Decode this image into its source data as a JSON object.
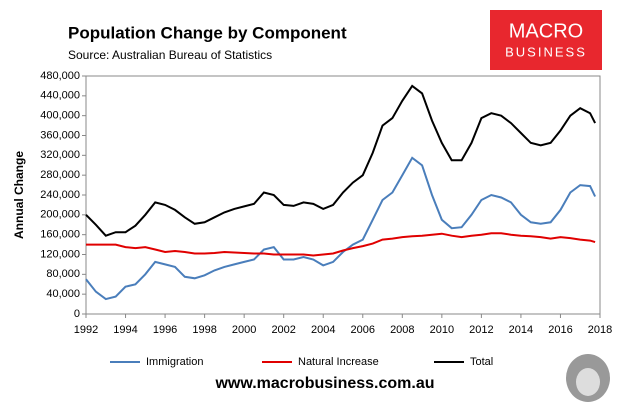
{
  "chart_data": {
    "type": "line",
    "title": "Population Change by Component",
    "subtitle": "Source: Australian Bureau of Statistics",
    "y_label": "Annual Change",
    "logo": [
      "MACRO",
      "BUSINESS"
    ],
    "website": "www.macrobusiness.com.au",
    "legend": "bottom",
    "grid": false,
    "xlim": [
      1992,
      2018
    ],
    "xticks": [
      1992,
      1994,
      1996,
      1998,
      2000,
      2002,
      2004,
      2006,
      2008,
      2010,
      2012,
      2014,
      2016,
      2018
    ],
    "ylim": [
      0,
      480000
    ],
    "yticks": [
      0,
      {
        "value": 40000,
        "label": "40,000"
      },
      {
        "value": 80000,
        "label": "80,000"
      },
      {
        "value": 120000,
        "label": "120,000"
      },
      {
        "value": 160000,
        "label": "160,000"
      },
      {
        "value": 200000,
        "label": "200,000"
      },
      {
        "value": 240000,
        "label": "240,000"
      },
      {
        "value": 280000,
        "label": "280,000"
      },
      {
        "value": 320000,
        "label": "320,000"
      },
      {
        "value": 360000,
        "label": "360,000"
      },
      {
        "value": 400000,
        "label": "400,000"
      },
      {
        "value": 440000,
        "label": "440,000"
      },
      {
        "value": 480000,
        "label": "480,000"
      }
    ],
    "x": [
      1992,
      1992.5,
      1993,
      1993.5,
      1994,
      1994.5,
      1995,
      1995.5,
      1996,
      1996.5,
      1997,
      1997.5,
      1998,
      1998.5,
      1999,
      1999.5,
      2000,
      2000.5,
      2001,
      2001.5,
      2002,
      2002.5,
      2003,
      2003.5,
      2004,
      2004.5,
      2005,
      2005.5,
      2006,
      2006.5,
      2007,
      2007.5,
      2008,
      2008.5,
      2009,
      2009.5,
      2010,
      2010.5,
      2011,
      2011.5,
      2012,
      2012.5,
      2013,
      2013.5,
      2014,
      2014.5,
      2015,
      2015.5,
      2016,
      2016.5,
      2017,
      2017.5,
      2017.75
    ],
    "series": [
      {
        "name": "Immigration",
        "color": "#4a7ebb",
        "values": [
          70000,
          45000,
          30000,
          35000,
          55000,
          60000,
          80000,
          105000,
          100000,
          95000,
          75000,
          72000,
          78000,
          88000,
          95000,
          100000,
          105000,
          110000,
          130000,
          135000,
          110000,
          110000,
          115000,
          110000,
          98000,
          105000,
          125000,
          140000,
          150000,
          190000,
          230000,
          245000,
          280000,
          315000,
          300000,
          240000,
          190000,
          173000,
          175000,
          200000,
          230000,
          240000,
          235000,
          225000,
          200000,
          185000,
          182000,
          185000,
          210000,
          245000,
          260000,
          258000,
          237000
        ]
      },
      {
        "name": "Natural Increase",
        "color": "#e00000",
        "values": [
          140000,
          140000,
          140000,
          140000,
          135000,
          133000,
          135000,
          130000,
          125000,
          127000,
          125000,
          122000,
          122000,
          123000,
          125000,
          124000,
          123000,
          122000,
          122000,
          120000,
          120000,
          120000,
          120000,
          118000,
          120000,
          122000,
          128000,
          133000,
          137000,
          142000,
          150000,
          152000,
          155000,
          157000,
          158000,
          160000,
          162000,
          158000,
          155000,
          158000,
          160000,
          163000,
          163000,
          160000,
          158000,
          157000,
          155000,
          152000,
          155000,
          153000,
          150000,
          148000,
          145000
        ]
      },
      {
        "name": "Total",
        "color": "#000000",
        "values": [
          200000,
          180000,
          158000,
          165000,
          165000,
          178000,
          200000,
          225000,
          220000,
          210000,
          195000,
          182000,
          185000,
          195000,
          205000,
          212000,
          217000,
          222000,
          245000,
          240000,
          220000,
          218000,
          225000,
          222000,
          212000,
          220000,
          245000,
          265000,
          280000,
          325000,
          380000,
          395000,
          430000,
          460000,
          445000,
          390000,
          345000,
          310000,
          310000,
          345000,
          395000,
          405000,
          400000,
          385000,
          365000,
          345000,
          340000,
          345000,
          370000,
          400000,
          415000,
          405000,
          385000
        ]
      }
    ]
  }
}
